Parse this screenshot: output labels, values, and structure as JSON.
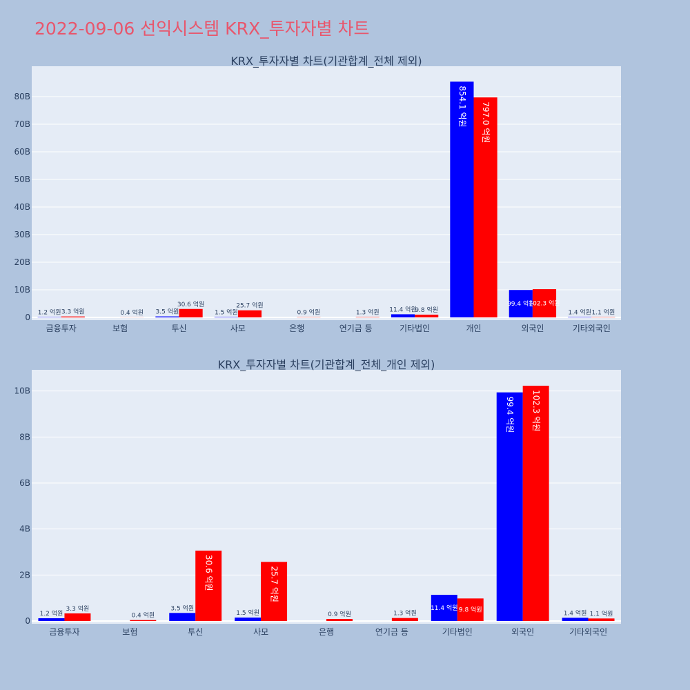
{
  "page": {
    "title": "2022-09-06 선익시스템 KRX_투자자별 차트"
  },
  "colors": {
    "background": "#b0c4de",
    "plot_bg": "#e5ecf6",
    "buy": "#0000ff",
    "sell": "#ff0000",
    "title": "#e8566c"
  },
  "chart_data": [
    {
      "type": "bar",
      "title": "KRX_투자자별 차트(기관합계_전체 제외)",
      "categories": [
        "금융투자",
        "보험",
        "투신",
        "사모",
        "은행",
        "연기금 등",
        "기타법인",
        "개인",
        "외국인",
        "기타외국인"
      ],
      "yticks": [
        "0",
        "10B",
        "20B",
        "30B",
        "40B",
        "50B",
        "60B",
        "70B",
        "80B"
      ],
      "ylim": [
        0,
        90
      ],
      "unit": "B",
      "grid": true,
      "series": [
        {
          "color": "#0000ff",
          "values": [
            0.12,
            0,
            0.35,
            0.15,
            0,
            0,
            1.14,
            85.41,
            9.94,
            0.14
          ],
          "labels": [
            "1.2 억원",
            "",
            "3.5 억원",
            "1.5 억원",
            "",
            "",
            "11.4 억원",
            "854.1 억원",
            "99.4 억원",
            "1.4 억원"
          ]
        },
        {
          "color": "#ff0000",
          "values": [
            0.33,
            0.04,
            3.06,
            2.57,
            0.09,
            0.13,
            0.98,
            79.7,
            10.23,
            0.11
          ],
          "labels": [
            "3.3 억원",
            "0.4 억원",
            "30.6 억원",
            "25.7 억원",
            "0.9 억원",
            "1.3 억원",
            "9.8 억원",
            "797.0 억원",
            "102.3 억원",
            "1.1 억원"
          ]
        }
      ]
    },
    {
      "type": "bar",
      "title": "KRX_투자자별 차트(기관합계_전체_개인 제외)",
      "categories": [
        "금융투자",
        "보험",
        "투신",
        "사모",
        "은행",
        "연기금 등",
        "기타법인",
        "외국인",
        "기타외국인"
      ],
      "yticks": [
        "0",
        "2B",
        "4B",
        "6B",
        "8B",
        "10B"
      ],
      "ylim": [
        0,
        10.8
      ],
      "unit": "B",
      "grid": true,
      "series": [
        {
          "color": "#0000ff",
          "values": [
            0.12,
            0,
            0.35,
            0.15,
            0,
            0,
            1.14,
            9.94,
            0.14
          ],
          "labels": [
            "1.2 억원",
            "",
            "3.5 억원",
            "1.5 억원",
            "",
            "",
            "11.4 억원",
            "99.4 억원",
            "1.4 억원"
          ]
        },
        {
          "color": "#ff0000",
          "values": [
            0.33,
            0.04,
            3.06,
            2.57,
            0.09,
            0.13,
            0.98,
            10.23,
            0.11
          ],
          "labels": [
            "3.3 억원",
            "0.4 억원",
            "30.6 억원",
            "25.7 억원",
            "0.9 억원",
            "1.3 억원",
            "9.8 억원",
            "102.3 억원",
            "1.1 억원"
          ]
        }
      ]
    }
  ]
}
